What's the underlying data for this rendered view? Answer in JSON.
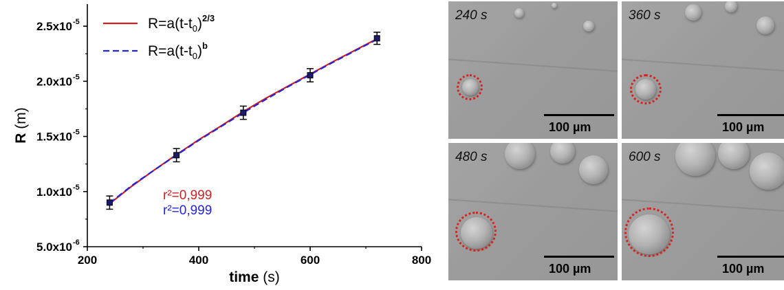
{
  "chart_data": {
    "type": "line",
    "xlabel_bold": "time",
    "xlabel_unit": "(s)",
    "ylabel_bold": "R",
    "ylabel_unit": "(m)",
    "xlim": [
      200,
      800
    ],
    "ylim": [
      5e-06,
      2.7e-05
    ],
    "x_ticks": [
      200,
      400,
      600,
      800
    ],
    "x_tick_labels": [
      "200",
      "400",
      "600",
      "800"
    ],
    "y_ticks": [
      5e-06,
      1e-05,
      1.5e-05,
      2e-05,
      2.5e-05
    ],
    "y_tick_labels": [
      {
        "mantissa": "5.0x10",
        "exp": "-6"
      },
      {
        "mantissa": "1.0x10",
        "exp": "-5"
      },
      {
        "mantissa": "1.5x10",
        "exp": "-5"
      },
      {
        "mantissa": "2.0x10",
        "exp": "-5"
      },
      {
        "mantissa": "2.5x10",
        "exp": "-5"
      }
    ],
    "points": {
      "x": [
        240,
        360,
        480,
        600,
        720
      ],
      "y": [
        9e-06,
        1.33e-05,
        1.715e-05,
        2.055e-05,
        2.39e-05
      ],
      "err": [
        6e-07,
        6e-07,
        6e-07,
        6e-07,
        5.5e-07
      ],
      "color": "#1a1a6e"
    },
    "series": [
      {
        "legend_main": "R=a(t-t",
        "legend_sub": "0",
        "legend_tail": ")",
        "legend_sup": "2/3",
        "color": "#d01f1f",
        "style": "solid",
        "x": [
          240,
          280,
          320,
          360,
          400,
          440,
          480,
          520,
          560,
          600,
          640,
          680,
          720
        ],
        "y": [
          8.9e-06,
          1.05e-05,
          1.195e-05,
          1.335e-05,
          1.47e-05,
          1.595e-05,
          1.725e-05,
          1.845e-05,
          1.955e-05,
          2.065e-05,
          2.175e-05,
          2.28e-05,
          2.385e-05
        ]
      },
      {
        "legend_main": "R=a(t-t",
        "legend_sub": "0",
        "legend_tail": ")",
        "legend_sup": "b",
        "color": "#2323e0",
        "style": "dashed",
        "x": [
          240,
          280,
          320,
          360,
          400,
          440,
          480,
          520,
          560,
          600,
          640,
          680,
          720
        ],
        "y": [
          8.95e-06,
          1.055e-05,
          1.195e-05,
          1.33e-05,
          1.465e-05,
          1.59e-05,
          1.715e-05,
          1.835e-05,
          1.95e-05,
          2.06e-05,
          2.17e-05,
          2.275e-05,
          2.38e-05
        ]
      }
    ],
    "annotations": [
      {
        "text": "r²=0,999",
        "color": "#d01f1f"
      },
      {
        "text": "r²=0,999",
        "color": "#2323e0"
      }
    ]
  },
  "panels": [
    {
      "time": "240 s",
      "scale": "100 µm"
    },
    {
      "time": "360 s",
      "scale": "100 µm"
    },
    {
      "time": "480 s",
      "scale": "100 µm"
    },
    {
      "time": "600 s",
      "scale": "100 µm"
    }
  ]
}
